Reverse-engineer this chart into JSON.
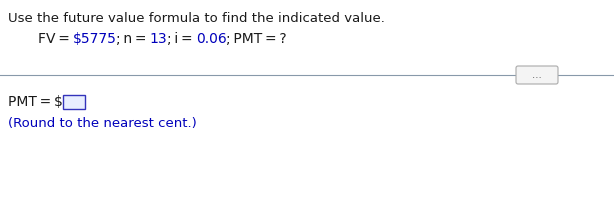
{
  "line1": "Use the future value formula to find the indicated value.",
  "line2_parts": [
    {
      "text": "FV = ",
      "color": "#1a1a1a"
    },
    {
      "text": "$5775",
      "color": "#0000bb"
    },
    {
      "text": "; n = ",
      "color": "#1a1a1a"
    },
    {
      "text": "13",
      "color": "#0000bb"
    },
    {
      "text": "; i = ",
      "color": "#1a1a1a"
    },
    {
      "text": "0.06",
      "color": "#0000bb"
    },
    {
      "text": "; PMT = ?",
      "color": "#1a1a1a"
    }
  ],
  "line3_prefix": "PMT = $",
  "line4": "(Round to the nearest cent.)",
  "bg_color": "#ffffff",
  "text_color": "#1a1a1a",
  "blue_color": "#0000bb",
  "sep_color": "#8899aa",
  "font_size_line1": 9.5,
  "font_size_formula": 10.0,
  "font_size_answer": 10.0,
  "font_size_round": 9.5,
  "input_box_fill": "#e8eeff",
  "input_box_edge": "#3333bb",
  "dots_fill": "#f4f4f4",
  "dots_edge": "#aaaaaa"
}
